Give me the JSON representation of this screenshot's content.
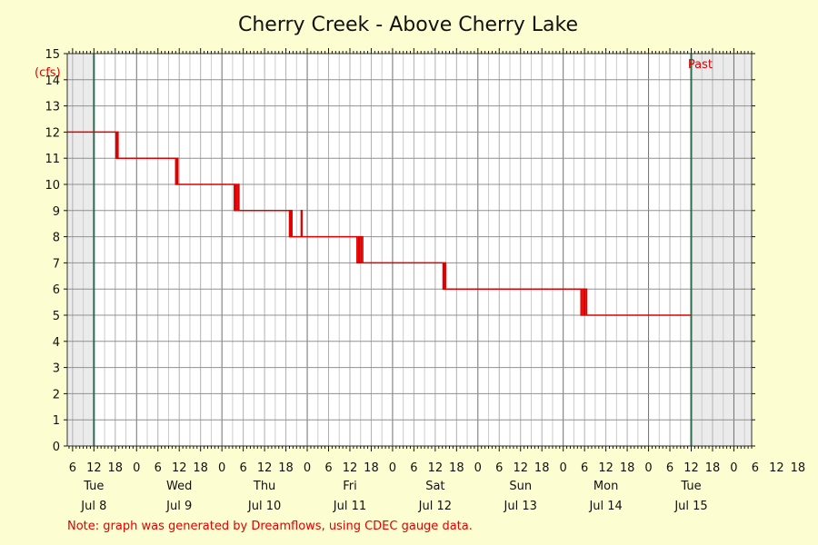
{
  "chart_data": {
    "type": "line",
    "title": "Cherry Creek - Above Cherry Lake",
    "ylabel": "(cfs)",
    "ylim": [
      0,
      15
    ],
    "y_ticks": [
      0,
      1,
      2,
      3,
      4,
      5,
      6,
      7,
      8,
      9,
      10,
      11,
      12,
      13,
      14,
      15
    ],
    "x_unit": "hours since Jul 8 00:00",
    "xlim": [
      4.5,
      197
    ],
    "x_hour_ticks": [
      "6",
      "12",
      "18",
      "0",
      "6",
      "12",
      "18",
      "0",
      "6",
      "12",
      "18",
      "0",
      "6",
      "12",
      "18",
      "0",
      "6",
      "12",
      "18",
      "0",
      "6",
      "12",
      "18",
      "0",
      "6",
      "12",
      "18",
      "0",
      "6",
      "12",
      "18",
      "0",
      "6",
      "12",
      "18"
    ],
    "day_labels": [
      {
        "day": "Tue",
        "date": "Jul 8"
      },
      {
        "day": "Wed",
        "date": "Jul 9"
      },
      {
        "day": "Thu",
        "date": "Jul 10"
      },
      {
        "day": "Fri",
        "date": "Jul 11"
      },
      {
        "day": "Sat",
        "date": "Jul 12"
      },
      {
        "day": "Sun",
        "date": "Jul 13"
      },
      {
        "day": "Mon",
        "date": "Jul 14"
      },
      {
        "day": "Tue",
        "date": "Jul 15"
      }
    ],
    "past_label": "Past",
    "series": [
      {
        "color": "#e00000",
        "points": [
          [
            4.5,
            12
          ],
          [
            18.2,
            12
          ],
          [
            18.2,
            11
          ],
          [
            18.5,
            11
          ],
          [
            18.5,
            12
          ],
          [
            18.8,
            12
          ],
          [
            18.8,
            11
          ],
          [
            35.0,
            11
          ],
          [
            35.0,
            10
          ],
          [
            35.3,
            10
          ],
          [
            35.3,
            11
          ],
          [
            35.6,
            11
          ],
          [
            35.6,
            10
          ],
          [
            51.5,
            10
          ],
          [
            51.5,
            9
          ],
          [
            51.8,
            9
          ],
          [
            51.8,
            10
          ],
          [
            52.1,
            10
          ],
          [
            52.1,
            9
          ],
          [
            52.5,
            9
          ],
          [
            52.5,
            10
          ],
          [
            52.8,
            10
          ],
          [
            52.8,
            9
          ],
          [
            67.0,
            9
          ],
          [
            67.0,
            8
          ],
          [
            67.3,
            8
          ],
          [
            67.3,
            9
          ],
          [
            67.7,
            9
          ],
          [
            67.7,
            8
          ],
          [
            70.3,
            8
          ],
          [
            70.3,
            9
          ],
          [
            70.5,
            9
          ],
          [
            70.5,
            8
          ],
          [
            86.0,
            8
          ],
          [
            86.0,
            7
          ],
          [
            86.4,
            7
          ],
          [
            86.4,
            8
          ],
          [
            86.8,
            8
          ],
          [
            86.8,
            7
          ],
          [
            87.2,
            7
          ],
          [
            87.2,
            8
          ],
          [
            87.6,
            8
          ],
          [
            87.6,
            7
          ],
          [
            110.2,
            7
          ],
          [
            110.2,
            6
          ],
          [
            110.6,
            6
          ],
          [
            110.6,
            7
          ],
          [
            110.9,
            7
          ],
          [
            110.9,
            6
          ],
          [
            149.0,
            6
          ],
          [
            149.0,
            5
          ],
          [
            149.4,
            5
          ],
          [
            149.4,
            6
          ],
          [
            149.8,
            6
          ],
          [
            149.8,
            5
          ],
          [
            150.2,
            5
          ],
          [
            150.2,
            6
          ],
          [
            150.6,
            6
          ],
          [
            150.6,
            5
          ],
          [
            180.0,
            5
          ]
        ]
      }
    ],
    "note": "Note: graph was generated by Dreamflows, using CDEC gauge data."
  }
}
